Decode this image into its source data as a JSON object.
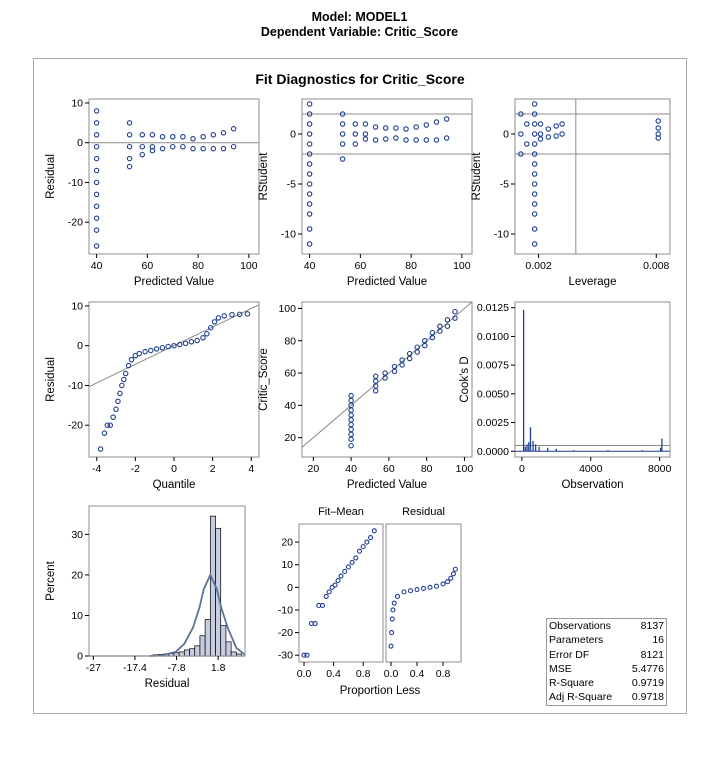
{
  "header": {
    "model_title": "Model: MODEL1",
    "dep_title": "Dependent Variable: Critic_Score"
  },
  "figure_title": "Fit Diagnostics for Critic_Score",
  "colors": {
    "marker": "#1f3f8f",
    "frame": "#8c8c8c",
    "refline": "#8c8c8c",
    "hist_fill": "#c7cde0",
    "density": "#5a7399"
  },
  "stats": {
    "rows": [
      {
        "label": "Observations",
        "value": "8137"
      },
      {
        "label": "Parameters",
        "value": "16"
      },
      {
        "label": "Error DF",
        "value": "8121"
      },
      {
        "label": "MSE",
        "value": "5.4776"
      },
      {
        "label": "R-Square",
        "value": "0.9719"
      },
      {
        "label": "Adj R-Square",
        "value": "0.9718"
      }
    ]
  },
  "chart_data": [
    {
      "type": "scatter",
      "xlabel": "Predicted Value",
      "ylabel": "Residual",
      "xlim": [
        37,
        104
      ],
      "ylim": [
        -28,
        11
      ],
      "xticks": [
        40,
        60,
        80,
        100
      ],
      "yticks": [
        -20,
        -10,
        0,
        10
      ],
      "reflines_y": [
        0
      ],
      "points": [
        [
          40,
          8
        ],
        [
          40,
          5
        ],
        [
          40,
          2
        ],
        [
          40,
          -1
        ],
        [
          40,
          -4
        ],
        [
          40,
          -7
        ],
        [
          40,
          -10
        ],
        [
          40,
          -13
        ],
        [
          40,
          -16
        ],
        [
          40,
          -19
        ],
        [
          40,
          -22
        ],
        [
          40,
          -26
        ],
        [
          53,
          5
        ],
        [
          53,
          2
        ],
        [
          53,
          -1
        ],
        [
          53,
          -4
        ],
        [
          53,
          -6
        ],
        [
          58,
          2
        ],
        [
          58,
          -1
        ],
        [
          58,
          -3
        ],
        [
          62,
          2
        ],
        [
          62,
          -1
        ],
        [
          62,
          -2
        ],
        [
          66,
          1.5
        ],
        [
          66,
          -1.5
        ],
        [
          70,
          1.5
        ],
        [
          70,
          -1
        ],
        [
          74,
          1.5
        ],
        [
          74,
          -1
        ],
        [
          78,
          1
        ],
        [
          78,
          -1.5
        ],
        [
          82,
          1.5
        ],
        [
          82,
          -1.5
        ],
        [
          86,
          2
        ],
        [
          86,
          -1.5
        ],
        [
          90,
          2.5
        ],
        [
          90,
          -1.5
        ],
        [
          94,
          3.5
        ],
        [
          94,
          -1
        ]
      ]
    },
    {
      "type": "scatter",
      "xlabel": "Predicted Value",
      "ylabel": "RStudent",
      "xlim": [
        37,
        104
      ],
      "ylim": [
        -12,
        3.5
      ],
      "xticks": [
        40,
        60,
        80,
        100
      ],
      "yticks": [
        -10,
        -5,
        0
      ],
      "reflines_y": [
        -2,
        2
      ],
      "points": [
        [
          40,
          3
        ],
        [
          40,
          2
        ],
        [
          40,
          1
        ],
        [
          40,
          0
        ],
        [
          40,
          -1
        ],
        [
          40,
          -2
        ],
        [
          40,
          -3
        ],
        [
          40,
          -4
        ],
        [
          40,
          -5
        ],
        [
          40,
          -6
        ],
        [
          40,
          -7
        ],
        [
          40,
          -8
        ],
        [
          40,
          -9.5
        ],
        [
          40,
          -11
        ],
        [
          53,
          2
        ],
        [
          53,
          1
        ],
        [
          53,
          0
        ],
        [
          53,
          -1
        ],
        [
          53,
          -2.5
        ],
        [
          58,
          1
        ],
        [
          58,
          0
        ],
        [
          58,
          -1
        ],
        [
          62,
          1
        ],
        [
          62,
          0
        ],
        [
          62,
          -0.5
        ],
        [
          66,
          0.7
        ],
        [
          66,
          -0.6
        ],
        [
          70,
          0.6
        ],
        [
          70,
          -0.5
        ],
        [
          74,
          0.6
        ],
        [
          74,
          -0.4
        ],
        [
          78,
          0.5
        ],
        [
          78,
          -0.6
        ],
        [
          82,
          0.7
        ],
        [
          82,
          -0.6
        ],
        [
          86,
          0.9
        ],
        [
          86,
          -0.6
        ],
        [
          90,
          1.2
        ],
        [
          90,
          -0.6
        ],
        [
          94,
          1.5
        ],
        [
          94,
          -0.4
        ]
      ]
    },
    {
      "type": "scatter",
      "xlabel": "Leverage",
      "ylabel": "RStudent",
      "xlim": [
        0.0008,
        0.0087
      ],
      "ylim": [
        -12,
        3.5
      ],
      "xticks": [
        0.002,
        0.008
      ],
      "xticklabels": [
        "0.002",
        "0.008"
      ],
      "yticks": [
        -10,
        -5,
        0
      ],
      "reflines_y": [
        -2,
        2
      ],
      "reflines_x": [
        0.0039
      ],
      "points": [
        [
          0.0011,
          2
        ],
        [
          0.0011,
          0
        ],
        [
          0.0011,
          -2
        ],
        [
          0.0014,
          1
        ],
        [
          0.0014,
          -1
        ],
        [
          0.0018,
          3
        ],
        [
          0.0018,
          2
        ],
        [
          0.0018,
          1
        ],
        [
          0.0018,
          0
        ],
        [
          0.0018,
          -1
        ],
        [
          0.0018,
          -2
        ],
        [
          0.0018,
          -3
        ],
        [
          0.0018,
          -4
        ],
        [
          0.0018,
          -5
        ],
        [
          0.0018,
          -6
        ],
        [
          0.0018,
          -7
        ],
        [
          0.0018,
          -8
        ],
        [
          0.0018,
          -9.5
        ],
        [
          0.0018,
          -11
        ],
        [
          0.0021,
          1
        ],
        [
          0.0021,
          0
        ],
        [
          0.0021,
          -0.5
        ],
        [
          0.0025,
          0.5
        ],
        [
          0.0025,
          -0.3
        ],
        [
          0.0029,
          0.8
        ],
        [
          0.0029,
          -0.2
        ],
        [
          0.0032,
          1
        ],
        [
          0.0032,
          0
        ],
        [
          0.0081,
          1.3
        ],
        [
          0.0081,
          0.6
        ],
        [
          0.0081,
          0
        ],
        [
          0.0081,
          -0.4
        ]
      ]
    },
    {
      "type": "scatter",
      "xlabel": "Quantile",
      "ylabel": "Residual",
      "xlim": [
        -4.4,
        4.4
      ],
      "ylim": [
        -28,
        11
      ],
      "xticks": [
        -4,
        -2,
        0,
        2,
        4
      ],
      "yticks": [
        -20,
        -10,
        0,
        10
      ],
      "refline": {
        "intercept": 0,
        "slope": 2.34
      },
      "points": [
        [
          -3.8,
          -26
        ],
        [
          -3.6,
          -22
        ],
        [
          -3.45,
          -20
        ],
        [
          -3.3,
          -20
        ],
        [
          -3.15,
          -18
        ],
        [
          -3.0,
          -16
        ],
        [
          -2.9,
          -14
        ],
        [
          -2.8,
          -12
        ],
        [
          -2.7,
          -10
        ],
        [
          -2.6,
          -8.5
        ],
        [
          -2.5,
          -7
        ],
        [
          -2.35,
          -5
        ],
        [
          -2.2,
          -3.5
        ],
        [
          -2.0,
          -2.5
        ],
        [
          -1.8,
          -2
        ],
        [
          -1.5,
          -1.5
        ],
        [
          -1.2,
          -1.2
        ],
        [
          -0.9,
          -0.8
        ],
        [
          -0.6,
          -0.5
        ],
        [
          -0.3,
          -0.2
        ],
        [
          0,
          0
        ],
        [
          0.3,
          0.3
        ],
        [
          0.6,
          0.6
        ],
        [
          0.9,
          1
        ],
        [
          1.2,
          1.3
        ],
        [
          1.5,
          2
        ],
        [
          1.7,
          3
        ],
        [
          1.9,
          4.5
        ],
        [
          2.1,
          6
        ],
        [
          2.3,
          7
        ],
        [
          2.6,
          7.5
        ],
        [
          3.0,
          7.8
        ],
        [
          3.4,
          7.9
        ],
        [
          3.8,
          8
        ]
      ]
    },
    {
      "type": "scatter",
      "xlabel": "Predicted Value",
      "ylabel": "Critic_Score",
      "xlim": [
        14,
        104
      ],
      "ylim": [
        8,
        104
      ],
      "xticks": [
        20,
        40,
        60,
        80,
        100
      ],
      "yticks": [
        20,
        40,
        60,
        80,
        100
      ],
      "refline": {
        "intercept": 0,
        "slope": 1
      },
      "points": [
        [
          40,
          46
        ],
        [
          40,
          43
        ],
        [
          40,
          40
        ],
        [
          40,
          37
        ],
        [
          40,
          34
        ],
        [
          40,
          31
        ],
        [
          40,
          28
        ],
        [
          40,
          25
        ],
        [
          40,
          22
        ],
        [
          40,
          19
        ],
        [
          40,
          15
        ],
        [
          53,
          58
        ],
        [
          53,
          55
        ],
        [
          53,
          52
        ],
        [
          53,
          49
        ],
        [
          58,
          60
        ],
        [
          58,
          57
        ],
        [
          63,
          64
        ],
        [
          63,
          61
        ],
        [
          67,
          68
        ],
        [
          67,
          65
        ],
        [
          71,
          72
        ],
        [
          71,
          69
        ],
        [
          75,
          76
        ],
        [
          75,
          73
        ],
        [
          79,
          80
        ],
        [
          79,
          77
        ],
        [
          83,
          85
        ],
        [
          83,
          82
        ],
        [
          87,
          89
        ],
        [
          87,
          86
        ],
        [
          91,
          93
        ],
        [
          91,
          89
        ],
        [
          95,
          98
        ],
        [
          95,
          94
        ]
      ]
    },
    {
      "type": "bar",
      "xlabel": "Observation",
      "ylabel": "Cook's D",
      "xlim": [
        -400,
        8600
      ],
      "ylim": [
        -0.0005,
        0.013
      ],
      "xticks": [
        0,
        4000,
        8000
      ],
      "yticks": [
        0,
        0.0025,
        0.005,
        0.0075,
        0.01,
        0.0125
      ],
      "yticklabels": [
        "0.0000",
        "0.0025",
        "0.0050",
        "0.0075",
        "0.0100",
        "0.0125"
      ],
      "reflines_y": [
        0.0005
      ],
      "points": [
        [
          100,
          0.0123
        ],
        [
          200,
          0.0004
        ],
        [
          300,
          0.0006
        ],
        [
          400,
          0.0008
        ],
        [
          500,
          0.0021
        ],
        [
          650,
          0.0009
        ],
        [
          800,
          0.0006
        ],
        [
          1000,
          0.0004
        ],
        [
          1500,
          0.0003
        ],
        [
          2000,
          0.0002
        ],
        [
          3000,
          0.0001
        ],
        [
          5000,
          0.0001
        ],
        [
          7000,
          0.0001
        ],
        [
          8050,
          0.0003
        ],
        [
          8130,
          0.0011
        ]
      ]
    },
    {
      "type": "bar",
      "xlabel": "Residual",
      "ylabel": "Percent",
      "xlim": [
        -28,
        8
      ],
      "ylim": [
        0,
        37
      ],
      "xticks": [
        -27,
        -17.4,
        -7.8,
        1.8
      ],
      "xticklabels": [
        "-27",
        "-17.4",
        "-7.8",
        "1.8"
      ],
      "yticks": [
        0,
        10,
        20,
        30
      ],
      "bin_width": 1.2,
      "bin_centers": [
        -12.6,
        -11.4,
        -10.2,
        -9.0,
        -7.8,
        -6.6,
        -5.4,
        -4.2,
        -3.0,
        -1.8,
        -0.6,
        0.6,
        1.8,
        3.0,
        4.2,
        5.4,
        6.6
      ],
      "values": [
        0.3,
        0.4,
        0.5,
        0.6,
        0.8,
        1.0,
        1.5,
        1.8,
        2.5,
        5,
        9,
        34.5,
        31.5,
        7.5,
        3.5,
        1,
        0.5
      ],
      "density_curve": [
        [
          -14,
          0
        ],
        [
          -11,
          0.2
        ],
        [
          -8,
          1
        ],
        [
          -6,
          3
        ],
        [
          -4,
          7
        ],
        [
          -2.5,
          12
        ],
        [
          -1.5,
          16.5
        ],
        [
          0,
          20
        ],
        [
          1.5,
          16.5
        ],
        [
          2.5,
          12
        ],
        [
          4,
          7
        ],
        [
          6,
          2
        ],
        [
          8,
          0.3
        ]
      ]
    },
    {
      "type": "scatter",
      "xlabel": "Proportion Less",
      "ylabel": "",
      "panel_labels": [
        "Fit–Mean",
        "Residual"
      ],
      "xticks": [
        0.0,
        0.4,
        0.8
      ],
      "xticklabels": [
        "0.0",
        "0.4",
        "0.8"
      ],
      "yticks": [
        -30,
        -20,
        -10,
        0,
        10,
        20
      ],
      "ylim": [
        -33,
        28
      ],
      "fit_mean": [
        [
          0.0,
          -30
        ],
        [
          0.04,
          -30
        ],
        [
          0.1,
          -16
        ],
        [
          0.15,
          -16
        ],
        [
          0.2,
          -8
        ],
        [
          0.25,
          -8
        ],
        [
          0.3,
          -4
        ],
        [
          0.34,
          -2
        ],
        [
          0.38,
          0
        ],
        [
          0.42,
          1
        ],
        [
          0.46,
          3
        ],
        [
          0.5,
          5
        ],
        [
          0.55,
          7
        ],
        [
          0.6,
          9
        ],
        [
          0.65,
          11
        ],
        [
          0.7,
          13
        ],
        [
          0.75,
          16
        ],
        [
          0.8,
          18
        ],
        [
          0.85,
          20
        ],
        [
          0.9,
          22
        ],
        [
          0.95,
          25
        ]
      ],
      "residual": [
        [
          0.0,
          -26
        ],
        [
          0.01,
          -20
        ],
        [
          0.02,
          -14
        ],
        [
          0.03,
          -10
        ],
        [
          0.05,
          -7
        ],
        [
          0.1,
          -4
        ],
        [
          0.2,
          -2
        ],
        [
          0.3,
          -1.5
        ],
        [
          0.4,
          -1
        ],
        [
          0.5,
          -0.5
        ],
        [
          0.6,
          0
        ],
        [
          0.7,
          0.5
        ],
        [
          0.8,
          1.5
        ],
        [
          0.87,
          2.5
        ],
        [
          0.92,
          4
        ],
        [
          0.96,
          6
        ],
        [
          0.99,
          8
        ]
      ]
    }
  ]
}
